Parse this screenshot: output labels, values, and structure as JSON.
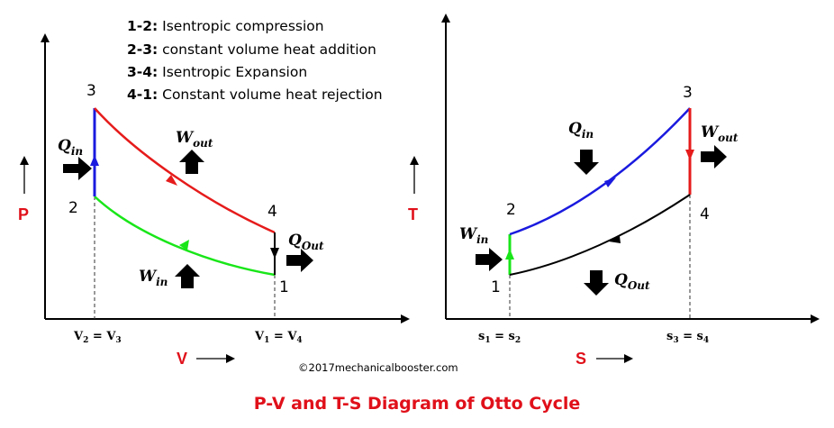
{
  "title": "P-V and T-S Diagram of Otto Cycle",
  "copyright": "©2017mechanicalbooster.com",
  "legend": [
    {
      "id": "1-2:",
      "text": " Isentropic compression"
    },
    {
      "id": "2-3:",
      "text": " constant volume heat addition"
    },
    {
      "id": "3-4:",
      "text": " Isentropic  Expansion"
    },
    {
      "id": "4-1:",
      "text": " Constant volume heat rejection"
    }
  ],
  "colors": {
    "compression": "#19e619",
    "heat_addition": "#1a1adf",
    "expansion": "#e61b1b",
    "heat_rejection": "#000000",
    "axis_label": "#e0101a"
  },
  "pv": {
    "y_axis": "P",
    "x_axis": "V",
    "points": {
      "p1": "1",
      "p2": "2",
      "p3": "3",
      "p4": "4"
    },
    "ticks": {
      "left": {
        "a": "V",
        "a_sub": "2",
        "eq": " = ",
        "b": "V",
        "b_sub": "3"
      },
      "right": {
        "a": "V",
        "a_sub": "1",
        "eq": " = ",
        "b": "V",
        "b_sub": "4"
      }
    },
    "q_in": {
      "main": "Q",
      "sub": "in"
    },
    "w_out": {
      "main": "W",
      "sub": "out"
    },
    "q_out": {
      "main": "Q",
      "sub": "Out"
    },
    "w_in": {
      "main": "W",
      "sub": "in"
    }
  },
  "ts": {
    "y_axis": "T",
    "x_axis": "S",
    "points": {
      "p1": "1",
      "p2": "2",
      "p3": "3",
      "p4": "4"
    },
    "ticks": {
      "left": {
        "a": "s",
        "a_sub": "1",
        "eq": " = ",
        "b": "s",
        "b_sub": "2"
      },
      "right": {
        "a": "s",
        "a_sub": "3",
        "eq": " = ",
        "b": "s",
        "b_sub": "4"
      }
    },
    "q_in": {
      "main": "Q",
      "sub": "in"
    },
    "w_out": {
      "main": "W",
      "sub": "out"
    },
    "q_out": {
      "main": "Q",
      "sub": "Out"
    },
    "w_in": {
      "main": "W",
      "sub": "in"
    }
  }
}
